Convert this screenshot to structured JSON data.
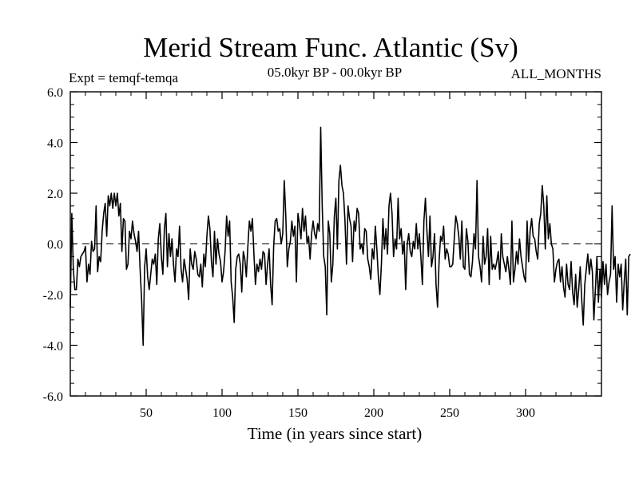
{
  "chart_data": {
    "type": "line",
    "title": "Merid Stream Func. Atlantic (Sv)",
    "subtitle_left": "Expt = temqf-temqa",
    "subtitle_center": "05.0kyr BP - 00.0kyr BP",
    "subtitle_right": "ALL_MONTHS",
    "xlabel": "Time (in years since start)",
    "ylabel": "",
    "xlim": [
      0,
      350
    ],
    "ylim": [
      -6,
      6
    ],
    "xticks": [
      50,
      100,
      150,
      200,
      250,
      300
    ],
    "xtick_labels": [
      "50",
      "100",
      "150",
      "200",
      "250",
      "300"
    ],
    "yticks": [
      6,
      4,
      2,
      0,
      -2,
      -4,
      -6
    ],
    "ytick_labels": [
      "6.0",
      "4.0",
      "2.0",
      "0.0",
      "-2.0",
      "-4.0",
      "-6.0"
    ],
    "reference_line": {
      "y": 0,
      "style": "dashed"
    },
    "series": [
      {
        "name": "temqf-temqa",
        "x_start": 0,
        "x_step": 1,
        "values": [
          -2.5,
          1.2,
          -1.0,
          -1.8,
          -1.8,
          -0.6,
          -0.9,
          -0.5,
          -0.4,
          -0.3,
          -0.1,
          -1.5,
          -0.8,
          -1.2,
          0.1,
          -0.3,
          -0.2,
          1.5,
          -1.1,
          -0.5,
          -0.7,
          0.5,
          1.2,
          1.6,
          0.3,
          1.9,
          1.5,
          2.0,
          1.4,
          2.0,
          1.5,
          2.0,
          1.1,
          1.6,
          -0.3,
          1.0,
          0.9,
          -1.0,
          -0.8,
          0.5,
          0.2,
          0.9,
          0.4,
          0.1,
          -0.3,
          0.5,
          -1.0,
          -2.2,
          -4.0,
          -0.9,
          -0.2,
          -1.3,
          -1.8,
          -1.2,
          -0.6,
          -0.8,
          -0.4,
          -1.6,
          0.2,
          0.8,
          -0.5,
          -1.2,
          0.6,
          1.2,
          -0.9,
          0.4,
          -0.5,
          0.2,
          -0.8,
          -1.5,
          -0.2,
          -0.5,
          0.7,
          -1.0,
          -1.5,
          -0.6,
          -1.0,
          -1.4,
          -2.2,
          -0.2,
          -0.8,
          -1.0,
          -0.3,
          -0.6,
          -1.2,
          -1.3,
          -0.8,
          -1.7,
          -0.4,
          -0.9,
          0.3,
          1.1,
          0.6,
          -0.7,
          -1.3,
          0.5,
          -0.8,
          0.2,
          -0.4,
          -0.7,
          -1.5,
          -1.1,
          -0.3,
          1.1,
          0.3,
          0.9,
          -1.5,
          -2.1,
          -3.1,
          -1.0,
          -0.5,
          -0.4,
          -0.8,
          -1.9,
          -0.3,
          -0.6,
          -1.3,
          -0.1,
          0.9,
          0.5,
          1.0,
          -0.4,
          -1.6,
          -0.8,
          -1.1,
          -0.6,
          -1.0,
          -0.3,
          -0.4,
          -1.6,
          -0.8,
          -0.2,
          -1.6,
          -2.4,
          -0.1,
          0.9,
          1.0,
          0.5,
          0.6,
          0.0,
          0.4,
          2.5,
          1.1,
          -0.9,
          -0.2,
          0.1,
          0.9,
          0.3,
          0.7,
          -1.5,
          1.2,
          0.8,
          0.2,
          1.4,
          0.5,
          1.1,
          0.0,
          0.3,
          -0.6,
          0.4,
          0.9,
          0.4,
          0.2,
          0.8,
          0.5,
          4.6,
          1.5,
          -0.5,
          -0.9,
          -2.8,
          0.9,
          0.4,
          -1.5,
          -0.8,
          1.1,
          1.8,
          -0.2,
          2.5,
          3.1,
          2.3,
          2.0,
          0.9,
          -0.8,
          1.5,
          1.0,
          0.7,
          -0.7,
          0.9,
          0.5,
          1.4,
          1.2,
          -0.2,
          0.0,
          -0.4,
          0.6,
          0.5,
          -0.6,
          -0.9,
          -1.4,
          -0.2,
          -0.6,
          0.7,
          -0.2,
          -1.3,
          -2.0,
          -0.8,
          1.0,
          -0.2,
          0.6,
          -0.4,
          1.5,
          2.0,
          1.2,
          -0.5,
          0.2,
          -0.2,
          1.8,
          0.2,
          0.6,
          -0.4,
          0.1,
          -1.8,
          0.0,
          0.4,
          -0.3,
          -0.5,
          0.1,
          -0.2,
          0.8,
          -0.2,
          0.4,
          -0.5,
          -1.6,
          0.9,
          1.8,
          0.5,
          -0.5,
          1.1,
          -0.9,
          -0.5,
          0.4,
          -1.6,
          -2.5,
          -0.7,
          0.3,
          0.1,
          0.7,
          -0.6,
          -0.2,
          -0.4,
          -0.9,
          -0.9,
          -0.8,
          0.2,
          1.1,
          0.8,
          0.3,
          -0.6,
          0.9,
          -0.9,
          -1.0,
          0.6,
          0.1,
          -1.2,
          -1.3,
          -0.7,
          0.4,
          -0.2,
          2.5,
          -0.5,
          -0.9,
          -1.5,
          0.3,
          -0.8,
          -0.5,
          0.6,
          -1.6,
          0.3,
          -1.0,
          -0.8,
          -1.0,
          -0.7,
          -0.3,
          -1.4,
          0.4,
          -0.5,
          -0.8,
          -1.1,
          -0.5,
          -1.0,
          -1.6,
          0.9,
          -1.5,
          -1.0,
          -0.3,
          -0.8,
          0.2,
          -0.5,
          -0.9,
          -1.3,
          -1.5,
          0.9,
          -0.7,
          0.5,
          1.0,
          0.3,
          0.2,
          -0.3,
          -0.6,
          0.8,
          1.2,
          2.3,
          1.5,
          -0.2,
          1.9,
          0.2,
          0.8,
          0.0,
          -0.2,
          -1.5,
          -1.0,
          -0.7,
          -0.6,
          -1.5,
          -0.9,
          -1.7,
          -2.1,
          -0.8,
          -1.6,
          -1.8,
          -0.7,
          -1.9,
          -2.4,
          -1.2,
          -2.5,
          -1.8,
          -0.9,
          -2.2,
          -3.2,
          -1.6,
          -1.0,
          -0.4,
          -1.2,
          -0.6,
          -1.1,
          -3.0,
          -1.8,
          -0.5,
          -2.3,
          -1.0,
          -2.1,
          -0.7,
          -1.6,
          -0.8,
          -2.0,
          -1.5,
          -1.2,
          1.5,
          -1.0,
          -0.5,
          -2.3,
          -0.8,
          -1.3,
          -0.8,
          -2.6,
          -1.5,
          -0.6,
          -2.8,
          -0.5,
          -0.4
        ]
      }
    ]
  }
}
